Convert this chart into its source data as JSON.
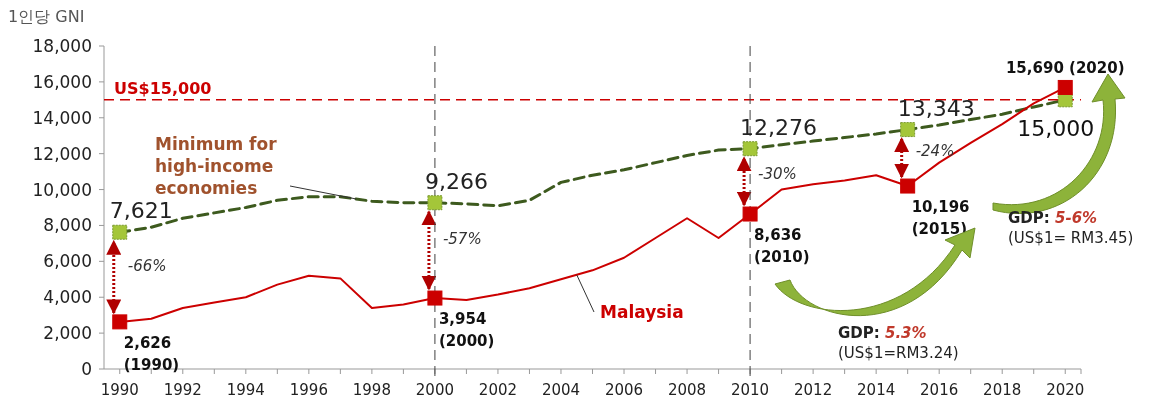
{
  "chart_data": {
    "type": "line",
    "ylabel": "1인당 GNI",
    "x": [
      1990,
      1991,
      1992,
      1993,
      1994,
      1995,
      1996,
      1997,
      1998,
      1999,
      2000,
      2001,
      2002,
      2003,
      2004,
      2005,
      2006,
      2007,
      2008,
      2009,
      2010,
      2011,
      2012,
      2013,
      2014,
      2015,
      2016,
      2017,
      2018,
      2019,
      2020
    ],
    "series": [
      {
        "name": "Minimum for high-income economies",
        "color": "#3d5a1e",
        "line_style": "dashed",
        "values": [
          7621,
          7900,
          8400,
          8700,
          9000,
          9400,
          9600,
          9600,
          9350,
          9270,
          9266,
          9200,
          9100,
          9400,
          10400,
          10800,
          11100,
          11500,
          11900,
          12200,
          12276,
          12500,
          12700,
          12900,
          13100,
          13343,
          13600,
          13900,
          14200,
          14600,
          15000
        ],
        "value_labels": [
          "7,621",
          null,
          null,
          null,
          null,
          null,
          null,
          null,
          null,
          null,
          "9,266",
          null,
          null,
          null,
          null,
          null,
          null,
          null,
          null,
          null,
          "12,276",
          null,
          null,
          null,
          null,
          "13,343",
          null,
          null,
          null,
          null,
          "15,000"
        ]
      },
      {
        "name": "Malaysia",
        "color": "#cc0000",
        "line_style": "solid",
        "values": [
          2626,
          2800,
          3400,
          3700,
          4000,
          4700,
          5200,
          5050,
          3400,
          3600,
          3954,
          3850,
          4150,
          4500,
          5000,
          5500,
          6200,
          7300,
          8400,
          7300,
          8636,
          10000,
          10300,
          10500,
          10800,
          10196,
          11500,
          12600,
          13650,
          14800,
          15690
        ],
        "value_labels": [
          "2,626\n(1990)",
          null,
          null,
          null,
          null,
          null,
          null,
          null,
          null,
          null,
          "3,954\n(2000)",
          null,
          null,
          null,
          null,
          null,
          null,
          null,
          null,
          null,
          "8,636\n(2010)",
          null,
          null,
          null,
          null,
          "10,196\n(2015)",
          null,
          null,
          null,
          null,
          "15,690 (2020)"
        ]
      }
    ],
    "xlim": [
      1989.5,
      2020.5
    ],
    "xticks": [
      1990,
      {
        "value": 1991,
        "label": null
      },
      1992,
      {
        "value": 1993,
        "label": null
      },
      1994,
      {
        "value": 1995,
        "label": null
      },
      1996,
      {
        "value": 1997,
        "label": null
      },
      1998,
      {
        "value": 1999,
        "label": null
      },
      2000,
      {
        "value": 2001,
        "label": null
      },
      2002,
      {
        "value": 2003,
        "label": null
      },
      2004,
      {
        "value": 2005,
        "label": null
      },
      2006,
      {
        "value": 2007,
        "label": null
      },
      2008,
      {
        "value": 2009,
        "label": null
      },
      2010,
      {
        "value": 2011,
        "label": null
      },
      2012,
      {
        "value": 2013,
        "label": null
      },
      2014,
      {
        "value": 2015,
        "label": null
      },
      2016,
      {
        "value": 2017,
        "label": null
      },
      2018,
      {
        "value": 2019,
        "label": null
      },
      2020
    ],
    "ylim": [
      0,
      18000
    ],
    "yticks": [
      0,
      {
        "value": 2000,
        "label": "2,000"
      },
      {
        "value": 4000,
        "label": "4,000"
      },
      {
        "value": 6000,
        "label": "6,000"
      },
      {
        "value": 8000,
        "label": "8,000"
      },
      {
        "value": 10000,
        "label": "10,000"
      },
      {
        "value": 12000,
        "label": "12,000"
      },
      {
        "value": 14000,
        "label": "14,000"
      },
      {
        "value": 16000,
        "label": "16,000"
      },
      {
        "value": 18000,
        "label": "18,000"
      }
    ],
    "ref_lines": [
      {
        "axis": "y",
        "value": 15000,
        "label": "US$15,000",
        "color": "#cc0000",
        "line_style": "dashed"
      },
      {
        "axis": "x",
        "value": 2000,
        "color": "#404040",
        "line_style": "dashed"
      },
      {
        "axis": "x",
        "value": 2010,
        "color": "#404040",
        "line_style": "dashed"
      }
    ],
    "annotations": [
      "-66%",
      "-57%",
      "-30%",
      "-24%",
      "GDP: 5.3%\n(US$1=RM3.24)",
      "GDP: 5-6%\n(US$1= RM3.45)"
    ],
    "grid": false
  }
}
